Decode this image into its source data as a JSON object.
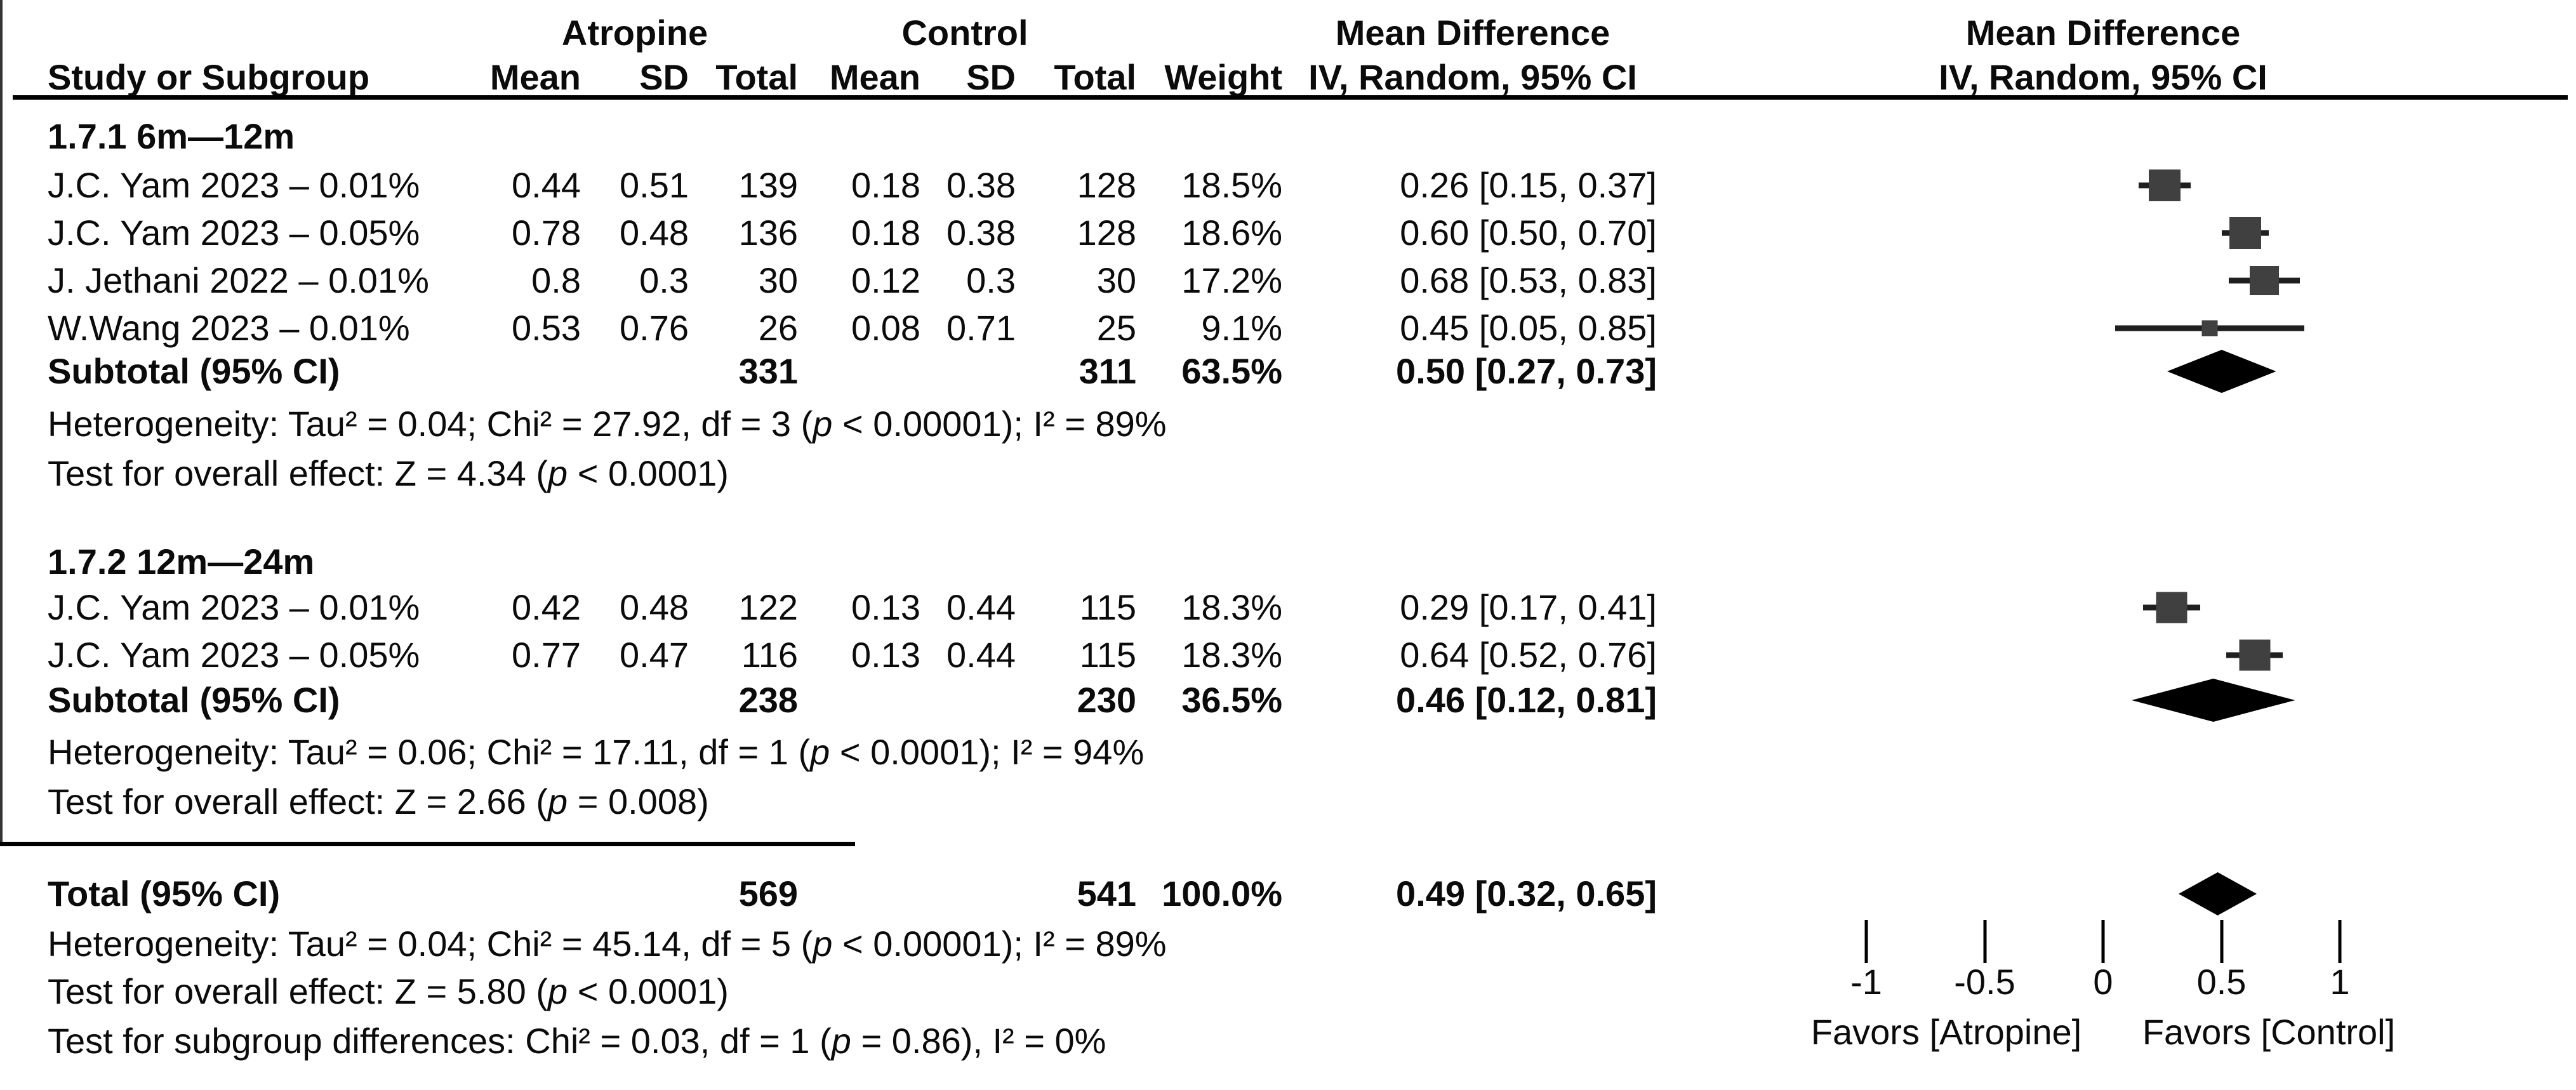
{
  "header": {
    "study_col": "Study or Subgroup",
    "group1": "Atropine",
    "group2": "Control",
    "mean_col": "Mean",
    "sd_col": "SD",
    "total_col": "Total",
    "weight_col": "Weight",
    "effect_title": "Mean Difference",
    "effect_method": "IV, Random, 95% CI"
  },
  "chart_data": {
    "type": "forest",
    "effect_measure": "Mean Difference",
    "model": "IV, Random, 95% CI",
    "axis_ticks": [
      -1,
      -0.5,
      0,
      0.5,
      1
    ],
    "axis_tick_labels": [
      "-1",
      "-0.5",
      "0",
      "0.5",
      "1"
    ],
    "axis_range": [
      -1.8,
      1.8
    ],
    "favors_left": "Favors [Atropine]",
    "favors_right": "Favors [Control]",
    "colors": {
      "square": "#404040",
      "ci_line": "#1f1f1f",
      "diamond": "#000000",
      "axis": "#000000",
      "zero_line": "#333333"
    },
    "subgroups": [
      {
        "heading": "1.7.1 6m—12m",
        "rows": [
          {
            "study": "J.C. Yam 2023 – 0.01%",
            "mean1": "0.44",
            "sd1": "0.51",
            "total1": "139",
            "mean2": "0.18",
            "sd2": "0.38",
            "total2": "128",
            "weight": "18.5%",
            "weight_val": 18.5,
            "ci_label": "0.26 [0.15, 0.37]",
            "est": 0.26,
            "lo": 0.15,
            "hi": 0.37
          },
          {
            "study": "J.C. Yam 2023 – 0.05%",
            "mean1": "0.78",
            "sd1": "0.48",
            "total1": "136",
            "mean2": "0.18",
            "sd2": "0.38",
            "total2": "128",
            "weight": "18.6%",
            "weight_val": 18.6,
            "ci_label": "0.60 [0.50, 0.70]",
            "est": 0.6,
            "lo": 0.5,
            "hi": 0.7
          },
          {
            "study": "J. Jethani 2022 – 0.01%",
            "mean1": "0.8",
            "sd1": "0.3",
            "total1": "30",
            "mean2": "0.12",
            "sd2": "0.3",
            "total2": "30",
            "weight": "17.2%",
            "weight_val": 17.2,
            "ci_label": "0.68 [0.53, 0.83]",
            "est": 0.68,
            "lo": 0.53,
            "hi": 0.83
          },
          {
            "study": "W.Wang 2023 – 0.01%",
            "mean1": "0.53",
            "sd1": "0.76",
            "total1": "26",
            "mean2": "0.08",
            "sd2": "0.71",
            "total2": "25",
            "weight": "9.1%",
            "weight_val": 9.1,
            "ci_label": "0.45 [0.05, 0.85]",
            "est": 0.45,
            "lo": 0.05,
            "hi": 0.85
          }
        ],
        "subtotal": {
          "label": "Subtotal (95% CI)",
          "total1": "331",
          "total2": "311",
          "weight": "63.5%",
          "ci_label": "0.50 [0.27, 0.73]",
          "est": 0.5,
          "lo": 0.27,
          "hi": 0.73
        },
        "heterogeneity": "Heterogeneity: Tau² = 0.04; Chi² = 27.92, df = 3 (p < 0.00001); I² = 89%",
        "overall_test": "Test for overall effect: Z = 4.34 (p < 0.0001)"
      },
      {
        "heading": "1.7.2 12m—24m",
        "rows": [
          {
            "study": "J.C. Yam 2023 – 0.01%",
            "mean1": "0.42",
            "sd1": "0.48",
            "total1": "122",
            "mean2": "0.13",
            "sd2": "0.44",
            "total2": "115",
            "weight": "18.3%",
            "weight_val": 18.3,
            "ci_label": "0.29 [0.17, 0.41]",
            "est": 0.29,
            "lo": 0.17,
            "hi": 0.41
          },
          {
            "study": "J.C. Yam 2023 – 0.05%",
            "mean1": "0.77",
            "sd1": "0.47",
            "total1": "116",
            "mean2": "0.13",
            "sd2": "0.44",
            "total2": "115",
            "weight": "18.3%",
            "weight_val": 18.3,
            "ci_label": "0.64 [0.52, 0.76]",
            "est": 0.64,
            "lo": 0.52,
            "hi": 0.76
          }
        ],
        "subtotal": {
          "label": "Subtotal (95% CI)",
          "total1": "238",
          "total2": "230",
          "weight": "36.5%",
          "ci_label": "0.46 [0.12, 0.81]",
          "est": 0.46,
          "lo": 0.12,
          "hi": 0.81
        },
        "heterogeneity": "Heterogeneity: Tau² = 0.06; Chi² = 17.11, df = 1 (p < 0.0001); I² = 94%",
        "overall_test": "Test for overall effect: Z = 2.66 (p = 0.008)"
      }
    ],
    "total": {
      "label": "Total (95% CI)",
      "total1": "569",
      "total2": "541",
      "weight": "100.0%",
      "ci_label": "0.49 [0.32, 0.65]",
      "est": 0.49,
      "lo": 0.32,
      "hi": 0.65,
      "heterogeneity": "Heterogeneity: Tau² = 0.04; Chi² = 45.14, df = 5 (p < 0.00001); I² = 89%",
      "overall_test": "Test for overall effect: Z = 5.80 (p < 0.0001)",
      "subgroup_test": "Test for subgroup differences: Chi² = 0.03, df = 1 (p = 0.86), I² = 0%"
    }
  }
}
